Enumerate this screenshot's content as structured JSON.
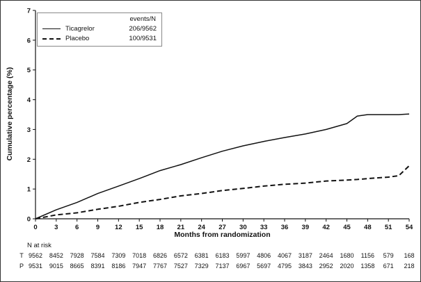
{
  "figure": {
    "y_axis_label": "Cumulative percentage (%)",
    "x_axis_label": "Months from randomization",
    "legend": {
      "header": "events/N",
      "items": [
        {
          "name": "Ticagrelor",
          "value": "206/9562",
          "line": "solid"
        },
        {
          "name": "Placebo",
          "value": "100/9531",
          "line": "dashed"
        }
      ]
    },
    "risk_table": {
      "title": "N at risk",
      "rows": [
        {
          "label": "T",
          "counts": [
            "9562",
            "8452",
            "7928",
            "7584",
            "7309",
            "7018",
            "6826",
            "6572",
            "6381",
            "6183",
            "5997",
            "4806",
            "4067",
            "3187",
            "2464",
            "1680",
            "1156",
            "579",
            "168"
          ]
        },
        {
          "label": "P",
          "counts": [
            "9531",
            "9015",
            "8665",
            "8391",
            "8186",
            "7947",
            "7767",
            "7527",
            "7329",
            "7137",
            "6967",
            "5697",
            "4795",
            "3843",
            "2952",
            "2020",
            "1358",
            "671",
            "218"
          ]
        }
      ]
    }
  },
  "chart_data": {
    "type": "line",
    "title": "",
    "xlabel": "Months from randomization",
    "ylabel": "Cumulative percentage (%)",
    "xlim": [
      0,
      54
    ],
    "ylim": [
      0,
      7
    ],
    "x_ticks": [
      0,
      3,
      6,
      9,
      12,
      15,
      18,
      21,
      24,
      27,
      30,
      33,
      36,
      39,
      42,
      45,
      48,
      51,
      54
    ],
    "y_ticks": [
      0,
      1,
      2,
      3,
      4,
      5,
      6,
      7
    ],
    "grid": false,
    "legend_position": "upper-left-inside",
    "x": [
      0,
      3,
      6,
      9,
      12,
      15,
      18,
      21,
      24,
      27,
      30,
      33,
      36,
      39,
      42,
      45,
      46.5,
      48,
      51,
      52.5,
      54
    ],
    "series": [
      {
        "name": "Ticagrelor",
        "events_n": "206/9562",
        "style": "solid",
        "values": [
          0,
          0.3,
          0.55,
          0.85,
          1.1,
          1.35,
          1.62,
          1.82,
          2.05,
          2.27,
          2.45,
          2.6,
          2.73,
          2.85,
          3.0,
          3.2,
          3.45,
          3.5,
          3.5,
          3.5,
          3.52
        ]
      },
      {
        "name": "Placebo",
        "events_n": "100/9531",
        "style": "dashed",
        "values": [
          0,
          0.13,
          0.2,
          0.32,
          0.42,
          0.55,
          0.65,
          0.77,
          0.85,
          0.95,
          1.02,
          1.1,
          1.16,
          1.2,
          1.27,
          1.3,
          1.32,
          1.35,
          1.4,
          1.45,
          1.78
        ]
      }
    ],
    "colors": {
      "line": "#111111"
    }
  }
}
